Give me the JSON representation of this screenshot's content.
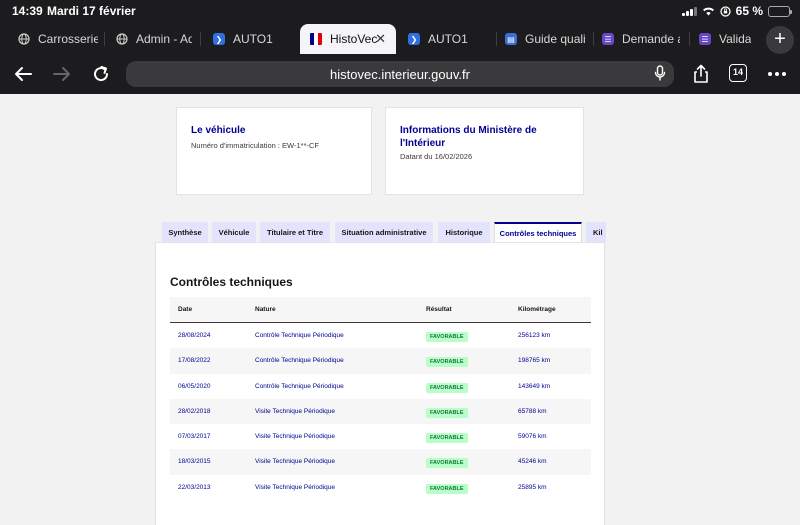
{
  "status_bar": {
    "time": "14:39",
    "date": "Mardi 17 février",
    "battery": "65 %",
    "battery_level": 0.65
  },
  "browser_tabs": [
    {
      "label": "Carrosserie",
      "icon": "globe-icon",
      "active": false
    },
    {
      "label": "Admin - Adm",
      "icon": "globe-icon",
      "active": false
    },
    {
      "label": "AUTO1",
      "icon": "auto1-icon",
      "active": false
    },
    {
      "label": "HistoVec",
      "icon": "histovec-flag-icon",
      "active": true
    },
    {
      "label": "AUTO1",
      "icon": "auto1-icon",
      "active": false
    },
    {
      "label": "Guide qualité",
      "icon": "doc-icon",
      "active": false
    },
    {
      "label": "Demande ag",
      "icon": "form-icon",
      "active": false
    },
    {
      "label": "Validat",
      "icon": "form-icon",
      "active": false
    }
  ],
  "toolbar": {
    "url": "histovec.interieur.gouv.fr",
    "tab_count": "14"
  },
  "vehicle_card": {
    "title": "Le véhicule",
    "plate_text": "Numéro d'immatriculation : EW-1**-CF"
  },
  "ministry_card": {
    "title": "Informations du Ministère de l'Intérieur",
    "date_text": "Datant du 16/02/2026"
  },
  "page_tabs": [
    {
      "label": "Synthèse",
      "active": false
    },
    {
      "label": "Véhicule",
      "active": false
    },
    {
      "label": "Titulaire et Titre",
      "active": false
    },
    {
      "label": "Situation administrative",
      "active": false
    },
    {
      "label": "Historique",
      "active": false
    },
    {
      "label": "Contrôles techniques",
      "active": true
    },
    {
      "label": "Kil",
      "active": false
    }
  ],
  "controls": {
    "title": "Contrôles techniques",
    "columns": [
      "Date",
      "Nature",
      "Résultat",
      "Kilométrage"
    ],
    "rows": [
      {
        "date": "28/08/2024",
        "nature": "Contrôle Technique Périodique",
        "result": "FAVORABLE",
        "km": "256123 km"
      },
      {
        "date": "17/08/2022",
        "nature": "Contrôle Technique Périodique",
        "result": "FAVORABLE",
        "km": "198765 km"
      },
      {
        "date": "06/05/2020",
        "nature": "Contrôle Technique Périodique",
        "result": "FAVORABLE",
        "km": "143649 km"
      },
      {
        "date": "28/02/2018",
        "nature": "Visite Technique Périodique",
        "result": "FAVORABLE",
        "km": "65788 km"
      },
      {
        "date": "07/03/2017",
        "nature": "Visite Technique Périodique",
        "result": "FAVORABLE",
        "km": "59076 km"
      },
      {
        "date": "18/03/2015",
        "nature": "Visite Technique Périodique",
        "result": "FAVORABLE",
        "km": "45246 km"
      },
      {
        "date": "22/03/2013",
        "nature": "Visite Technique Périodique",
        "result": "FAVORABLE",
        "km": "25895 km"
      }
    ]
  }
}
